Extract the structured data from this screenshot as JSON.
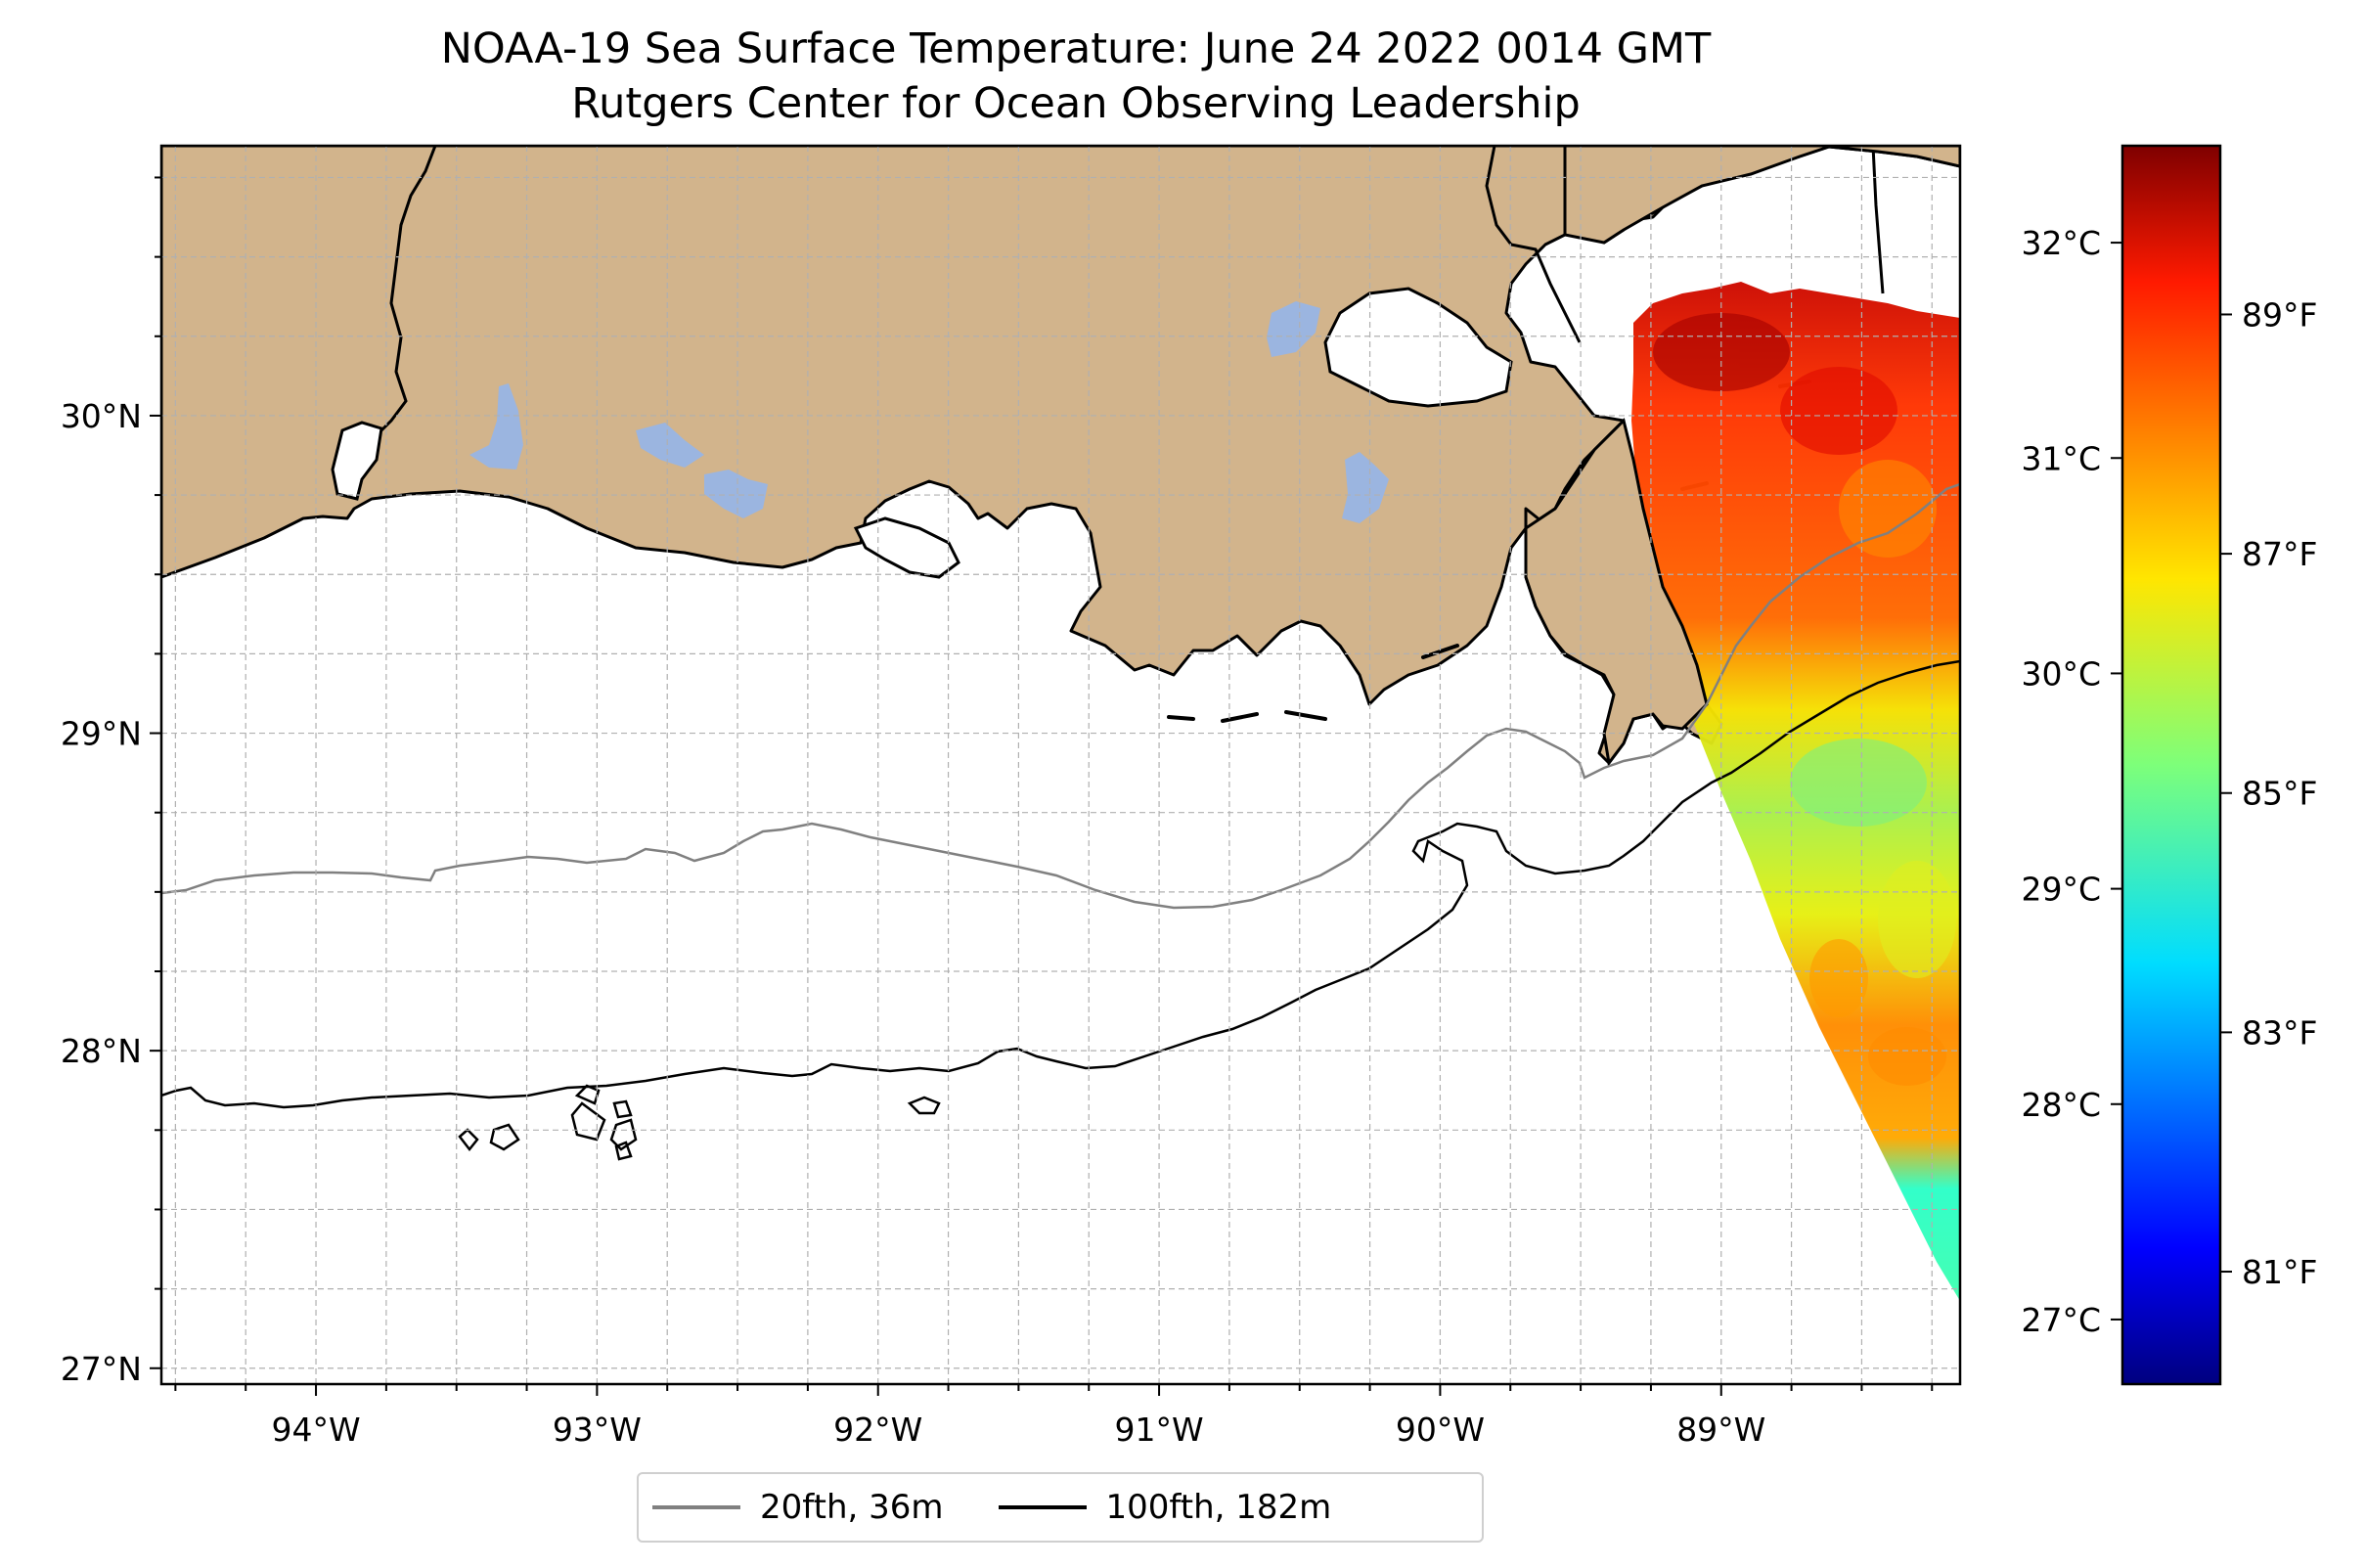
{
  "title": {
    "line1": "NOAA-19 Sea Surface Temperature: June 24 2022 0014 GMT",
    "line2": "Rutgers Center for Ocean Observing Leadership"
  },
  "map": {
    "lon_range": [
      -94.55,
      -88.15
    ],
    "lat_range": [
      26.95,
      30.85
    ],
    "land_color": "#d2b48c",
    "lake_color": "#9bb5e0",
    "grid": true,
    "x_ticks": [
      {
        "value": -94,
        "label": "94°W"
      },
      {
        "value": -93,
        "label": "93°W"
      },
      {
        "value": -92,
        "label": "92°W"
      },
      {
        "value": -91,
        "label": "91°W"
      },
      {
        "value": -90,
        "label": "90°W"
      },
      {
        "value": -89,
        "label": "89°W"
      }
    ],
    "y_ticks": [
      {
        "value": 27,
        "label": "27°N"
      },
      {
        "value": 28,
        "label": "28°N"
      },
      {
        "value": 29,
        "label": "29°N"
      },
      {
        "value": 30,
        "label": "30°N"
      }
    ]
  },
  "colorbar": {
    "colormap": "jet",
    "range_c": [
      26.7,
      32.45
    ],
    "celsius_ticks": [
      {
        "value": 27,
        "label": "27°C"
      },
      {
        "value": 28,
        "label": "28°C"
      },
      {
        "value": 29,
        "label": "29°C"
      },
      {
        "value": 30,
        "label": "30°C"
      },
      {
        "value": 31,
        "label": "31°C"
      },
      {
        "value": 32,
        "label": "32°C"
      }
    ],
    "fahrenheit_ticks": [
      {
        "value": 81,
        "label": "81°F"
      },
      {
        "value": 83,
        "label": "83°F"
      },
      {
        "value": 85,
        "label": "85°F"
      },
      {
        "value": 87,
        "label": "87°F"
      },
      {
        "value": 89,
        "label": "89°F"
      }
    ]
  },
  "legend": {
    "items": [
      {
        "label": "20fth, 36m",
        "color": "#808080"
      },
      {
        "label": "100fth, 182m",
        "color": "#000000"
      }
    ]
  }
}
